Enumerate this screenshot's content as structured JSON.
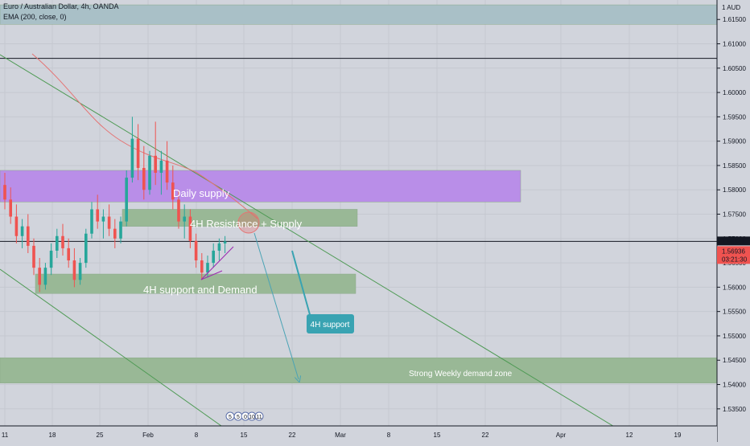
{
  "header": {
    "symbol_line": "Euro / Australian Dollar, 4h, OANDA",
    "indicator_line": "EMA (200, close, 0)"
  },
  "price_axis": {
    "currency": "AUD",
    "ticks": [
      "1.61500",
      "1.61000",
      "1.60500",
      "1.60000",
      "1.59500",
      "1.59000",
      "1.58500",
      "1.58000",
      "1.57500",
      "1.57000",
      "1.56500",
      "1.56000",
      "1.55500",
      "1.55000",
      "1.54500",
      "1.54000",
      "1.53500"
    ],
    "last_price": "1.56941",
    "current_price": "1.56936",
    "countdown": "03:21:30"
  },
  "time_axis": {
    "labels": [
      "11",
      "18",
      "25",
      "Feb",
      "8",
      "15",
      "22",
      "Mar",
      "8",
      "15",
      "22",
      "Apr",
      "12",
      "19"
    ]
  },
  "annotations": {
    "daily_supply": "Daily supply",
    "resistance_supply": "4H Resistance + Supply",
    "support_demand": "4H support and Demand",
    "weekly_demand": "Strong Weekly demand zone",
    "callout": "4H support"
  },
  "event_markers": [
    "5",
    "5",
    "0",
    "10",
    "11"
  ],
  "colors": {
    "background": "#d1d4dc",
    "daily_supply": "#b98ee8",
    "green_zone": "#99b896",
    "top_zone": "#a9c0c7",
    "callout": "#39a3b2",
    "up_candle": "#26a69a",
    "down_candle": "#ef5350",
    "ema": "#e57373",
    "trendline": "#4e9a54"
  },
  "chart_data": {
    "type": "candlestick",
    "symbol": "EURAUD",
    "timeframe": "4h",
    "ylim": [
      1.5315,
      1.619
    ],
    "ema_period": 200,
    "zones": [
      {
        "name": "top",
        "from": 1.614,
        "to": 1.618
      },
      {
        "name": "Daily supply",
        "from": 1.5775,
        "to": 1.584
      },
      {
        "name": "4H Resistance + Supply",
        "from": 1.5725,
        "to": 1.576
      },
      {
        "name": "4H support and Demand",
        "from": 1.5587,
        "to": 1.5627
      },
      {
        "name": "Strong Weekly demand zone",
        "from": 1.5403,
        "to": 1.5455
      }
    ],
    "horizontal_lines": [
      1.607,
      1.56941
    ],
    "candles": [
      [
        1.581,
        1.5835,
        1.576,
        1.578
      ],
      [
        1.578,
        1.5805,
        1.573,
        1.5745
      ],
      [
        1.5745,
        1.577,
        1.569,
        1.5705
      ],
      [
        1.5705,
        1.574,
        1.568,
        1.5725
      ],
      [
        1.5725,
        1.575,
        1.567,
        1.5685
      ],
      [
        1.5685,
        1.57,
        1.5625,
        1.564
      ],
      [
        1.564,
        1.566,
        1.559,
        1.5605
      ],
      [
        1.5605,
        1.565,
        1.5595,
        1.564
      ],
      [
        1.564,
        1.569,
        1.5625,
        1.5675
      ],
      [
        1.5675,
        1.572,
        1.566,
        1.5705
      ],
      [
        1.5705,
        1.573,
        1.5665,
        1.568
      ],
      [
        1.568,
        1.57,
        1.564,
        1.5655
      ],
      [
        1.5655,
        1.568,
        1.56,
        1.5615
      ],
      [
        1.5615,
        1.566,
        1.5605,
        1.565
      ],
      [
        1.565,
        1.572,
        1.564,
        1.571
      ],
      [
        1.571,
        1.5775,
        1.57,
        1.576
      ],
      [
        1.576,
        1.579,
        1.572,
        1.5735
      ],
      [
        1.5735,
        1.576,
        1.57,
        1.5745
      ],
      [
        1.5745,
        1.577,
        1.5705,
        1.572
      ],
      [
        1.572,
        1.574,
        1.568,
        1.57
      ],
      [
        1.57,
        1.5745,
        1.569,
        1.5735
      ],
      [
        1.5735,
        1.584,
        1.5725,
        1.5825
      ],
      [
        1.5825,
        1.595,
        1.5815,
        1.5905
      ],
      [
        1.5905,
        1.5935,
        1.582,
        1.5845
      ],
      [
        1.5845,
        1.589,
        1.578,
        1.58
      ],
      [
        1.58,
        1.588,
        1.579,
        1.587
      ],
      [
        1.587,
        1.594,
        1.581,
        1.5835
      ],
      [
        1.5835,
        1.588,
        1.579,
        1.586
      ],
      [
        1.586,
        1.59,
        1.58,
        1.5815
      ],
      [
        1.5815,
        1.585,
        1.576,
        1.578
      ],
      [
        1.578,
        1.58,
        1.572,
        1.5735
      ],
      [
        1.5735,
        1.577,
        1.57,
        1.5745
      ],
      [
        1.5745,
        1.576,
        1.568,
        1.5695
      ],
      [
        1.5695,
        1.571,
        1.564,
        1.5655
      ],
      [
        1.5655,
        1.567,
        1.5615,
        1.563
      ],
      [
        1.563,
        1.5665,
        1.562,
        1.565
      ],
      [
        1.565,
        1.569,
        1.564,
        1.5675
      ],
      [
        1.5675,
        1.57,
        1.5655,
        1.569
      ],
      [
        1.569,
        1.5705,
        1.567,
        1.5694
      ]
    ]
  }
}
